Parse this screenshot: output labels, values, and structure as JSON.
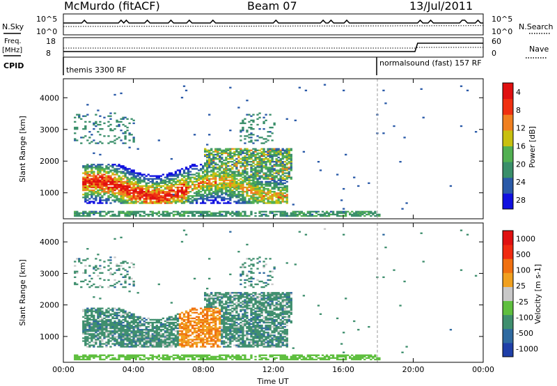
{
  "header": {
    "station": "McMurdo (fitACF)",
    "beam": "Beam 07",
    "date": "13/Jul/2011"
  },
  "top_panels": {
    "nsky": {
      "label": "N.Sky",
      "ticks": [
        "10^5",
        "10^0"
      ]
    },
    "nsearch": {
      "label": "N.Search",
      "ticks": [
        "10^5",
        "10^0"
      ]
    },
    "freq": {
      "label_line1": "Freq.",
      "label_line2": "[MHz]",
      "ticks": [
        "18",
        "8"
      ]
    },
    "nave": {
      "label": "Nave",
      "ticks": [
        "60",
        "0"
      ]
    },
    "cpid": {
      "label": "CPID",
      "segment1": "themis 3300 RF",
      "segment2": "normalsound (fast) 157 RF"
    }
  },
  "chart_data": [
    {
      "type": "heatmap",
      "title": "Power",
      "ylabel": "Slant Range [km]",
      "xlabel": "",
      "ylim": [
        180,
        4600
      ],
      "xlim_hours": [
        0,
        24
      ],
      "yticks": [
        "1000",
        "2000",
        "3000",
        "4000"
      ],
      "colorbar": {
        "label": "Power [dB]",
        "ticks": [
          "4",
          "8",
          "12",
          "16",
          "20",
          "24",
          "28"
        ],
        "colors": [
          "#1010e0",
          "#2a5aa8",
          "#3a8f6a",
          "#52b052",
          "#c8c010",
          "#f08020",
          "#f03010",
          "#e01010"
        ]
      }
    },
    {
      "type": "heatmap",
      "title": "Velocity",
      "ylabel": "Slant Range [km]",
      "xlabel": "Time UT",
      "ylim": [
        180,
        4600
      ],
      "xlim_hours": [
        0,
        24
      ],
      "yticks": [
        "1000",
        "2000",
        "3000",
        "4000"
      ],
      "xticks": [
        "00:00",
        "04:00",
        "08:00",
        "12:00",
        "16:00",
        "20:00",
        "00:00"
      ],
      "colorbar": {
        "label": "Velocity [m s-1]",
        "ticks": [
          "1000",
          "500",
          "100",
          "25",
          "-25",
          "-100",
          "-500",
          "-1000"
        ],
        "colors": [
          "#1f3fa8",
          "#2f6aa0",
          "#3f8f6e",
          "#5fbf3f",
          "#c8c8c8",
          "#f0a020",
          "#f07010",
          "#f02a10",
          "#e01010"
        ]
      }
    }
  ]
}
